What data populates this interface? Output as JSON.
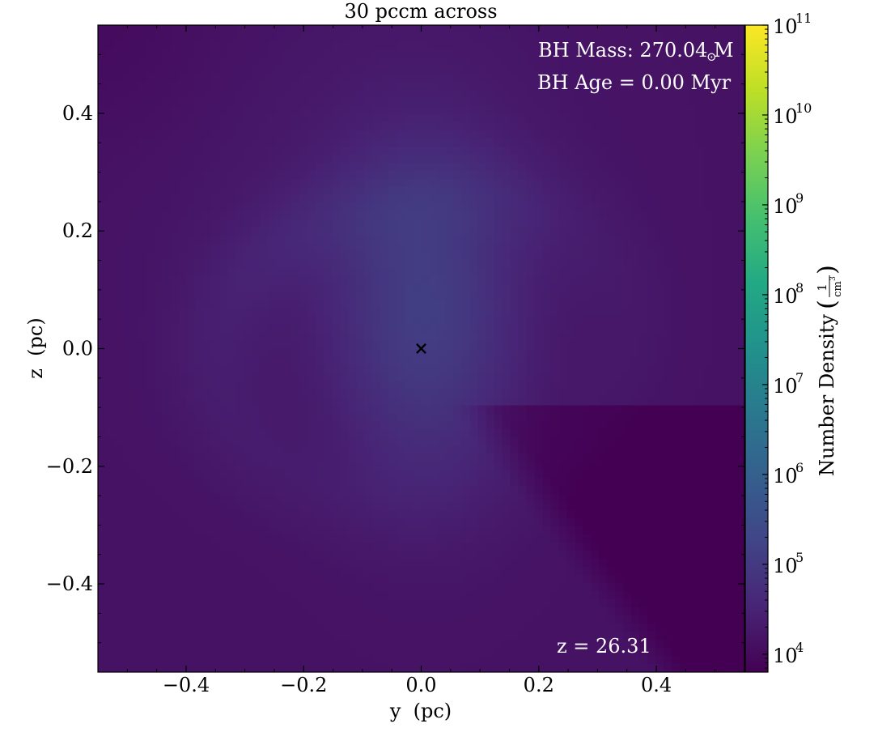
{
  "chart_data": {
    "type": "heatmap",
    "title": "30 pccm across",
    "xlabel": "y  (pc)",
    "ylabel": "z  (pc)",
    "xlim": [
      -0.55,
      0.55
    ],
    "ylim": [
      -0.55,
      0.55
    ],
    "xticks": [
      {
        "value": -0.4,
        "label": "−0.4"
      },
      {
        "value": -0.2,
        "label": "−0.2"
      },
      {
        "value": 0.0,
        "label": "0.0"
      },
      {
        "value": 0.2,
        "label": "0.2"
      },
      {
        "value": 0.4,
        "label": "0.4"
      }
    ],
    "yticks": [
      {
        "value": 0.4,
        "label": "0.4"
      },
      {
        "value": 0.2,
        "label": "0.2"
      },
      {
        "value": 0.0,
        "label": "0.0"
      },
      {
        "value": -0.2,
        "label": "−0.2"
      },
      {
        "value": -0.4,
        "label": "−0.4"
      }
    ],
    "annotations": {
      "bh_mass": "BH Mass: 270.04 M",
      "bh_mass_symbol": "⊙",
      "bh_age": "BH Age = 0.00 Myr",
      "redshift": "z = 26.31"
    },
    "marker": {
      "x": 0.0,
      "y": 0.0,
      "symbol": "×",
      "color": "#000000"
    },
    "colorbar": {
      "label": "Number Density",
      "unit_numerator": "1",
      "unit_denominator": "cm",
      "unit_power": "3",
      "scale": "log",
      "range_exp": [
        3.8,
        11.0
      ],
      "ticks": [
        {
          "base": "10",
          "exp": "4",
          "value_exp": 4
        },
        {
          "base": "10",
          "exp": "5",
          "value_exp": 5
        },
        {
          "base": "10",
          "exp": "6",
          "value_exp": 6
        },
        {
          "base": "10",
          "exp": "7",
          "value_exp": 7
        },
        {
          "base": "10",
          "exp": "8",
          "value_exp": 8
        },
        {
          "base": "10",
          "exp": "9",
          "value_exp": 9
        },
        {
          "base": "10",
          "exp": "10",
          "value_exp": 10
        },
        {
          "base": "10",
          "exp": "11",
          "value_exp": 11
        }
      ],
      "colormap": "viridis"
    },
    "field_log_density": {
      "background": 4.15,
      "low_density_region": 3.85,
      "core_peak": 5.0,
      "ring_peak": 4.55
    },
    "grid": false
  }
}
